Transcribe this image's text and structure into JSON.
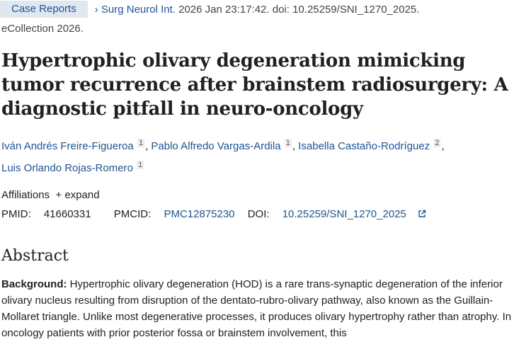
{
  "header": {
    "article_type": "Case Reports",
    "journal": "Surg Neurol Int.",
    "citation": "2026 Jan 23:17:42. doi: 10.25259/SNI_1270_2025.",
    "ecollection": "eCollection 2026."
  },
  "title": "Hypertrophic olivary degeneration mimicking tumor recurrence after brainstem radiosurgery: A diagnostic pitfall in neuro-oncology",
  "authors": [
    {
      "name": "Iván Andrés Freire-Figueroa",
      "aff": "1"
    },
    {
      "name": "Pablo Alfredo Vargas-Ardila",
      "aff": "1"
    },
    {
      "name": "Isabella Castaño-Rodríguez",
      "aff": "2"
    },
    {
      "name": "Luis Orlando Rojas-Romero",
      "aff": "1"
    }
  ],
  "affiliations": {
    "label": "Affiliations",
    "expand": "expand"
  },
  "ids": {
    "pmid_label": "PMID:",
    "pmid": "41660331",
    "pmcid_label": "PMCID:",
    "pmcid": "PMC12875230",
    "doi_label": "DOI:",
    "doi": "10.25259/SNI_1270_2025"
  },
  "abstract": {
    "heading": "Abstract",
    "background_label": "Background:",
    "background_text": " Hypertrophic olivary degeneration (HOD) is a rare trans-synaptic degeneration of the inferior olivary nucleus resulting from disruption of the dentato-rubro-olivary pathway, also known as the Guillain- Mollaret triangle. Unlike most degenerative processes, it produces olivary hypertrophy rather than atrophy. In oncology patients with prior posterior fossa or brainstem involvement, this"
  },
  "colors": {
    "link": "#205493",
    "badge_bg": "#dfe8f0"
  }
}
